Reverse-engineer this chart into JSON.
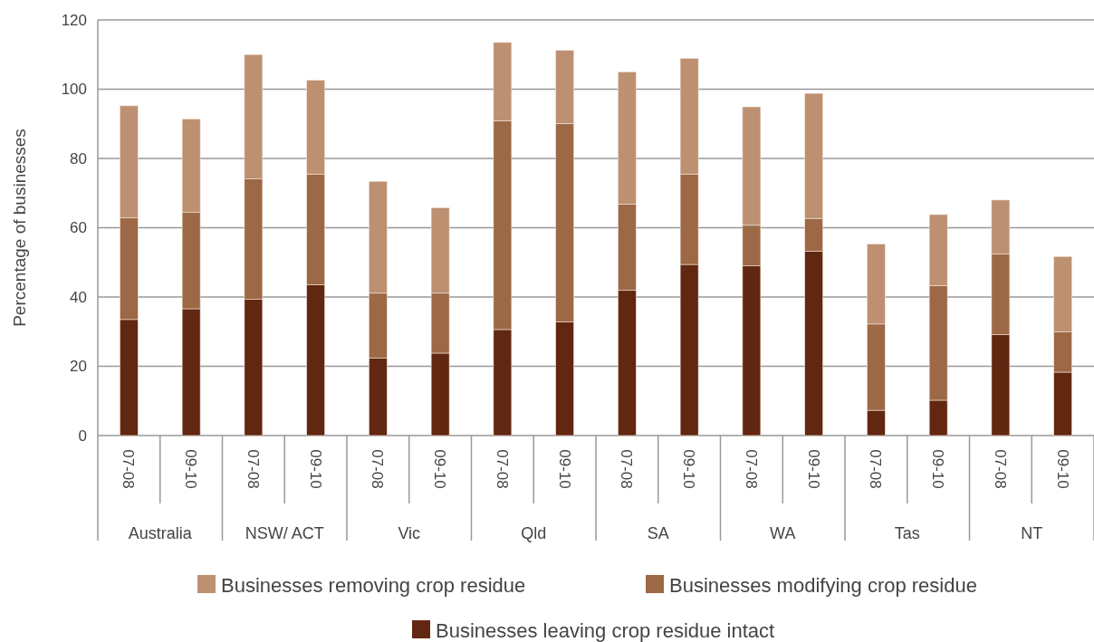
{
  "chart_data": {
    "type": "bar",
    "stacked": true,
    "ylabel": "Percentage of businesses",
    "categories": [
      "07-08",
      "09-10",
      "07-08",
      "09-10",
      "07-08",
      "09-10",
      "07-08",
      "09-10",
      "07-08",
      "09-10",
      "07-08",
      "09-10",
      "07-08",
      "09-10",
      "07-08",
      "09-10"
    ],
    "annotations": [
      "Australia",
      "NSW/ ACT",
      "Vic",
      "Qld",
      "SA",
      "WA",
      "Tas",
      "NT"
    ],
    "series": [
      {
        "name": "Businesses leaving crop residue intact",
        "color": "#622711",
        "values": [
          33.5,
          36.6,
          39.3,
          43.5,
          22.3,
          23.8,
          30.6,
          32.8,
          41.9,
          49.4,
          49.0,
          53.2,
          7.3,
          10.2,
          29.1,
          18.3
        ]
      },
      {
        "name": "Businesses modifying crop residue",
        "color": "#9d6845",
        "values": [
          29.4,
          27.8,
          34.8,
          32.0,
          18.8,
          17.3,
          60.3,
          57.3,
          24.9,
          26.1,
          11.7,
          9.5,
          24.9,
          33.1,
          23.3,
          11.6
        ]
      },
      {
        "name": "Businesses removing crop residue",
        "color": "#bd9072",
        "values": [
          32.3,
          27.0,
          35.9,
          27.1,
          32.3,
          24.7,
          22.6,
          21.1,
          38.2,
          33.4,
          34.2,
          36.1,
          23.1,
          20.5,
          15.6,
          21.8
        ]
      }
    ],
    "ylim": [
      0,
      120
    ],
    "yticks": [
      0,
      20,
      40,
      60,
      80,
      100,
      120
    ],
    "grid": "y",
    "legend": "bottom"
  }
}
